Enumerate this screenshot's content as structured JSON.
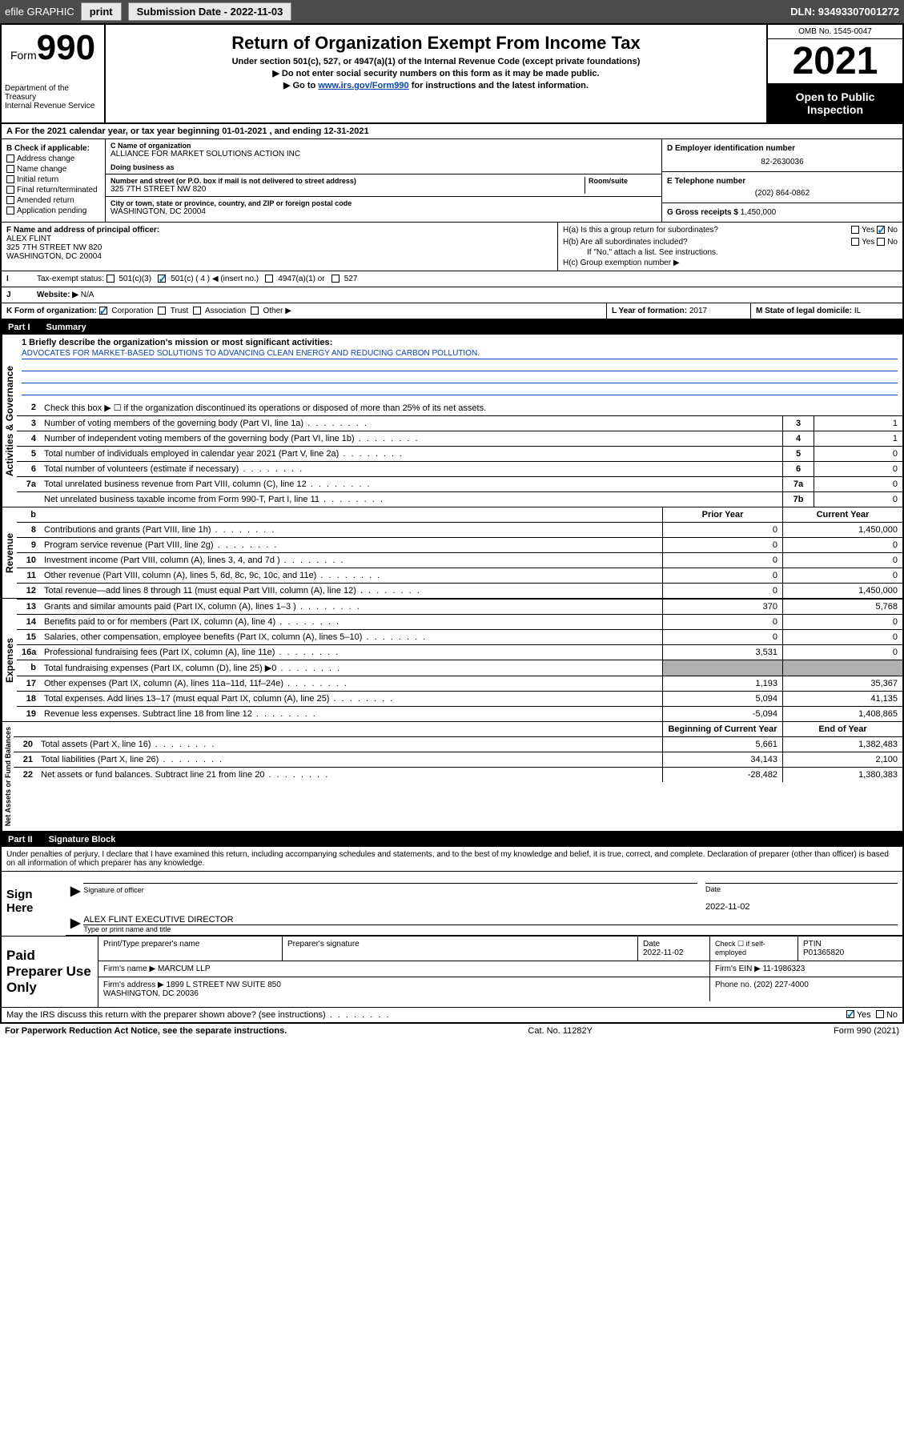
{
  "topbar": {
    "efile": "efile GRAPHIC",
    "print": "print",
    "subdate_lbl": "Submission Date - 2022-11-03",
    "dln": "DLN: 93493307001272"
  },
  "header": {
    "form_word": "Form",
    "form_num": "990",
    "dept": "Department of the Treasury\nInternal Revenue Service",
    "title": "Return of Organization Exempt From Income Tax",
    "sub1": "Under section 501(c), 527, or 4947(a)(1) of the Internal Revenue Code (except private foundations)",
    "sub2": "▶ Do not enter social security numbers on this form as it may be made public.",
    "sub3_pre": "▶ Go to ",
    "sub3_link": "www.irs.gov/Form990",
    "sub3_post": " for instructions and the latest information.",
    "omb": "OMB No. 1545-0047",
    "year": "2021",
    "open": "Open to Public Inspection"
  },
  "lineA": "A For the 2021 calendar year, or tax year beginning 01-01-2021   , and ending 12-31-2021",
  "colB": {
    "hdr": "B Check if applicable:",
    "items": [
      "Address change",
      "Name change",
      "Initial return",
      "Final return/terminated",
      "Amended return",
      "Application pending"
    ]
  },
  "colC": {
    "name_lbl": "C Name of organization",
    "name": "ALLIANCE FOR MARKET SOLUTIONS ACTION INC",
    "dba_lbl": "Doing business as",
    "addr_lbl": "Number and street (or P.O. box if mail is not delivered to street address)",
    "room_lbl": "Room/suite",
    "addr": "325 7TH STREET NW 820",
    "city_lbl": "City or town, state or province, country, and ZIP or foreign postal code",
    "city": "WASHINGTON, DC  20004"
  },
  "colDE": {
    "d_lbl": "D Employer identification number",
    "ein": "82-2630036",
    "e_lbl": "E Telephone number",
    "phone": "(202) 864-0862",
    "g_lbl": "G Gross receipts $",
    "gross": "1,450,000"
  },
  "rowF": {
    "f_lbl": "F Name and address of principal officer:",
    "f_val": "ALEX FLINT\n325 7TH STREET NW 820\nWASHINGTON, DC  20004",
    "ha": "H(a)  Is this a group return for subordinates?",
    "hb": "H(b)  Are all subordinates included?",
    "hb_note": "If \"No,\" attach a list. See instructions.",
    "hc": "H(c)  Group exemption number ▶",
    "yes": "Yes",
    "no": "No"
  },
  "rowI": {
    "i_lbl": "Tax-exempt status:",
    "i_opts": [
      "501(c)(3)",
      "501(c) ( 4 ) ◀ (insert no.)",
      "4947(a)(1) or",
      "527"
    ]
  },
  "rowJ": {
    "lbl": "Website: ▶",
    "val": "N/A"
  },
  "rowK": {
    "lbl": "K Form of organization:",
    "opts": [
      "Corporation",
      "Trust",
      "Association",
      "Other ▶"
    ],
    "l_lbl": "L Year of formation:",
    "l_val": "2017",
    "m_lbl": "M State of legal domicile:",
    "m_val": "IL"
  },
  "part1": {
    "label": "Part I",
    "title": "Summary"
  },
  "mission": {
    "q": "1  Briefly describe the organization's mission or most significant activities:",
    "text": "ADVOCATES FOR MARKET-BASED SOLUTIONS TO ADVANCING CLEAN ENERGY AND REDUCING CARBON POLLUTION."
  },
  "gov_rows": [
    {
      "n": "2",
      "t": "Check this box ▶ ☐  if the organization discontinued its operations or disposed of more than 25% of its net assets."
    },
    {
      "n": "3",
      "t": "Number of voting members of the governing body (Part VI, line 1a)",
      "k": "3",
      "v": "1"
    },
    {
      "n": "4",
      "t": "Number of independent voting members of the governing body (Part VI, line 1b)",
      "k": "4",
      "v": "1"
    },
    {
      "n": "5",
      "t": "Total number of individuals employed in calendar year 2021 (Part V, line 2a)",
      "k": "5",
      "v": "0"
    },
    {
      "n": "6",
      "t": "Total number of volunteers (estimate if necessary)",
      "k": "6",
      "v": "0"
    },
    {
      "n": "7a",
      "t": "Total unrelated business revenue from Part VIII, column (C), line 12",
      "k": "7a",
      "v": "0"
    },
    {
      "n": "",
      "t": "Net unrelated business taxable income from Form 990-T, Part I, line 11",
      "k": "7b",
      "v": "0"
    }
  ],
  "colheaders": {
    "b": "b",
    "prior": "Prior Year",
    "current": "Current Year"
  },
  "rev_rows": [
    {
      "n": "8",
      "t": "Contributions and grants (Part VIII, line 1h)",
      "p": "0",
      "c": "1,450,000"
    },
    {
      "n": "9",
      "t": "Program service revenue (Part VIII, line 2g)",
      "p": "0",
      "c": "0"
    },
    {
      "n": "10",
      "t": "Investment income (Part VIII, column (A), lines 3, 4, and 7d )",
      "p": "0",
      "c": "0"
    },
    {
      "n": "11",
      "t": "Other revenue (Part VIII, column (A), lines 5, 6d, 8c, 9c, 10c, and 11e)",
      "p": "0",
      "c": "0"
    },
    {
      "n": "12",
      "t": "Total revenue—add lines 8 through 11 (must equal Part VIII, column (A), line 12)",
      "p": "0",
      "c": "1,450,000"
    }
  ],
  "exp_rows": [
    {
      "n": "13",
      "t": "Grants and similar amounts paid (Part IX, column (A), lines 1–3 )",
      "p": "370",
      "c": "5,768"
    },
    {
      "n": "14",
      "t": "Benefits paid to or for members (Part IX, column (A), line 4)",
      "p": "0",
      "c": "0"
    },
    {
      "n": "15",
      "t": "Salaries, other compensation, employee benefits (Part IX, column (A), lines 5–10)",
      "p": "0",
      "c": "0"
    },
    {
      "n": "16a",
      "t": "Professional fundraising fees (Part IX, column (A), line 11e)",
      "p": "3,531",
      "c": "0"
    },
    {
      "n": "b",
      "t": "Total fundraising expenses (Part IX, column (D), line 25) ▶0",
      "p": "",
      "c": "",
      "grey": true
    },
    {
      "n": "17",
      "t": "Other expenses (Part IX, column (A), lines 11a–11d, 11f–24e)",
      "p": "1,193",
      "c": "35,367"
    },
    {
      "n": "18",
      "t": "Total expenses. Add lines 13–17 (must equal Part IX, column (A), line 25)",
      "p": "5,094",
      "c": "41,135"
    },
    {
      "n": "19",
      "t": "Revenue less expenses. Subtract line 18 from line 12",
      "p": "-5,094",
      "c": "1,408,865"
    }
  ],
  "net_hdr": {
    "b": "Beginning of Current Year",
    "e": "End of Year"
  },
  "net_rows": [
    {
      "n": "20",
      "t": "Total assets (Part X, line 16)",
      "p": "5,661",
      "c": "1,382,483"
    },
    {
      "n": "21",
      "t": "Total liabilities (Part X, line 26)",
      "p": "34,143",
      "c": "2,100"
    },
    {
      "n": "22",
      "t": "Net assets or fund balances. Subtract line 21 from line 20",
      "p": "-28,482",
      "c": "1,380,383"
    }
  ],
  "part2": {
    "label": "Part II",
    "title": "Signature Block"
  },
  "perjury": "Under penalties of perjury, I declare that I have examined this return, including accompanying schedules and statements, and to the best of my knowledge and belief, it is true, correct, and complete. Declaration of preparer (other than officer) is based on all information of which preparer has any knowledge.",
  "sign": {
    "here": "Sign Here",
    "sig_lbl": "Signature of officer",
    "date_lbl": "Date",
    "date": "2022-11-02",
    "name": "ALEX FLINT  EXECUTIVE DIRECTOR",
    "name_lbl": "Type or print name and title"
  },
  "paid": {
    "left": "Paid Preparer Use Only",
    "h1": "Print/Type preparer's name",
    "h2": "Preparer's signature",
    "h3": "Date",
    "date": "2022-11-02",
    "h4": "Check ☐ if self-employed",
    "h5": "PTIN",
    "ptin": "P01365820",
    "firm_lbl": "Firm's name    ▶",
    "firm": "MARCUM LLP",
    "ein_lbl": "Firm's EIN ▶",
    "ein": "11-1986323",
    "addr_lbl": "Firm's address ▶",
    "addr": "1899 L STREET NW SUITE 850\nWASHINGTON, DC  20036",
    "phone_lbl": "Phone no.",
    "phone": "(202) 227-4000"
  },
  "discuss": "May the IRS discuss this return with the preparer shown above? (see instructions)",
  "footer": {
    "left": "For Paperwork Reduction Act Notice, see the separate instructions.",
    "mid": "Cat. No. 11282Y",
    "right": "Form 990 (2021)"
  },
  "tabs": {
    "gov": "Activities & Governance",
    "rev": "Revenue",
    "exp": "Expenses",
    "net": "Net Assets or Fund Balances"
  }
}
